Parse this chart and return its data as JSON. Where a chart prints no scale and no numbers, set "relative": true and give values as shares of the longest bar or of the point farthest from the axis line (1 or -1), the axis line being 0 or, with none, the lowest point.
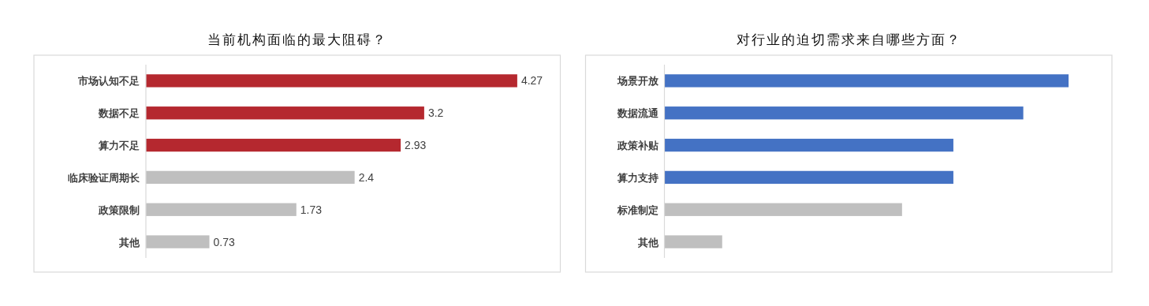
{
  "chart_data": [
    {
      "type": "bar",
      "orientation": "horizontal",
      "title": "当前机构面临的最大阻碍？",
      "categories": [
        "市场认知不足",
        "数据不足",
        "算力不足",
        "临床验证周期长",
        "政策限制",
        "其他"
      ],
      "values": [
        4.27,
        3.2,
        2.93,
        2.4,
        1.73,
        0.73
      ],
      "colors": [
        "#b5282f",
        "#b5282f",
        "#b5282f",
        "#bfbfbf",
        "#bfbfbf",
        "#bfbfbf"
      ],
      "data_labels": true
    },
    {
      "type": "bar",
      "orientation": "horizontal",
      "title": "对行业的迫切需求来自哪些方面？",
      "categories": [
        "场景开放",
        "数据流通",
        "政策补贴",
        "算力支持",
        "标准制定",
        "其他"
      ],
      "values": [
        1,
        0.888,
        0.715,
        0.715,
        0.588,
        0.143
      ],
      "colors": [
        "#4472c4",
        "#4472c4",
        "#4472c4",
        "#4472c4",
        "#bfbfbf",
        "#bfbfbf"
      ],
      "relative": true
    }
  ]
}
